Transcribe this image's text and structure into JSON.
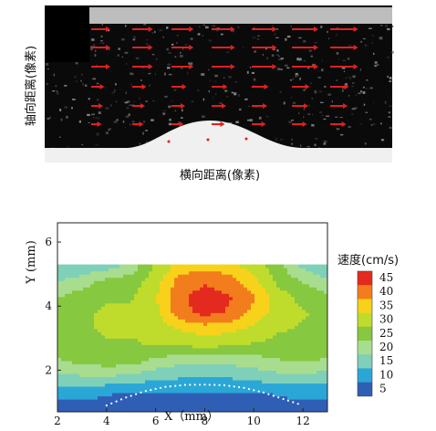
{
  "chart_data": [
    {
      "type": "ultrasound-vector-map",
      "xlabel": "横向距离(像素)",
      "ylabel": "轴向距离(像素)",
      "arrow_color": "#e02020",
      "background_color": "#0a0a0a",
      "tissue_color": "#f2f2f2"
    },
    {
      "type": "heatmap",
      "xlabel": "X（mm）",
      "ylabel": "Y (mm)",
      "xlim": [
        2,
        13
      ],
      "ylim": [
        0.7,
        6.6
      ],
      "data_ylim": [
        0.7,
        5.3
      ],
      "xticks": [
        "2",
        "4",
        "6",
        "8",
        "10",
        "12"
      ],
      "yticks": [
        "2",
        "4",
        "6"
      ],
      "colorbar_title": "速度(cm/s)",
      "colorbar_labels": [
        "45",
        "40",
        "35",
        "30",
        "25",
        "20",
        "15",
        "10",
        "5"
      ],
      "colorbar_colors": [
        "#e42a1e",
        "#f27d1c",
        "#f8d21a",
        "#bfdc2c",
        "#86c83f",
        "#a8dd8f",
        "#7fd0b9",
        "#2aa7d6",
        "#2f5fb5"
      ],
      "wall_dotted_boundary": {
        "x": [
          4.0,
          4.8,
          5.6,
          6.4,
          7.2,
          8.0,
          8.8,
          9.6,
          10.4,
          11.2,
          12.0
        ],
        "y": [
          0.9,
          1.15,
          1.35,
          1.48,
          1.54,
          1.55,
          1.53,
          1.45,
          1.3,
          1.1,
          0.9
        ]
      },
      "velocity_field": {
        "x": [
          2,
          3,
          4,
          5,
          6,
          7,
          8,
          9,
          10,
          11,
          12,
          13
        ],
        "y": [
          5.3,
          4.8,
          4.3,
          3.8,
          3.3,
          2.8,
          2.3,
          1.8,
          1.3,
          0.8
        ],
        "z": [
          [
            12,
            13,
            14,
            19,
            28,
            34,
            35,
            34,
            30,
            24,
            16,
            13
          ],
          [
            17,
            20,
            24,
            25,
            30,
            40,
            42,
            40,
            34,
            26,
            22,
            18
          ],
          [
            22,
            25,
            27,
            27,
            32,
            42,
            44,
            43,
            38,
            30,
            26,
            24
          ],
          [
            25,
            27,
            28,
            28,
            31,
            41,
            44,
            42,
            36,
            30,
            28,
            26
          ],
          [
            25,
            27,
            28,
            28,
            29,
            33,
            35,
            34,
            31,
            28,
            27,
            25
          ],
          [
            24,
            26,
            27,
            27,
            28,
            28,
            29,
            28,
            27,
            26,
            25,
            24
          ],
          [
            22,
            24,
            25,
            25,
            21,
            19,
            18,
            19,
            20,
            22,
            23,
            22
          ],
          [
            16,
            17,
            17,
            16,
            14,
            13,
            13,
            13,
            14,
            16,
            16,
            15
          ],
          [
            9,
            9,
            8,
            7,
            7,
            7,
            7,
            7,
            7,
            8,
            9,
            9
          ],
          [
            6,
            6,
            5,
            5,
            5,
            5,
            5,
            5,
            5,
            5,
            6,
            6
          ]
        ]
      }
    }
  ]
}
